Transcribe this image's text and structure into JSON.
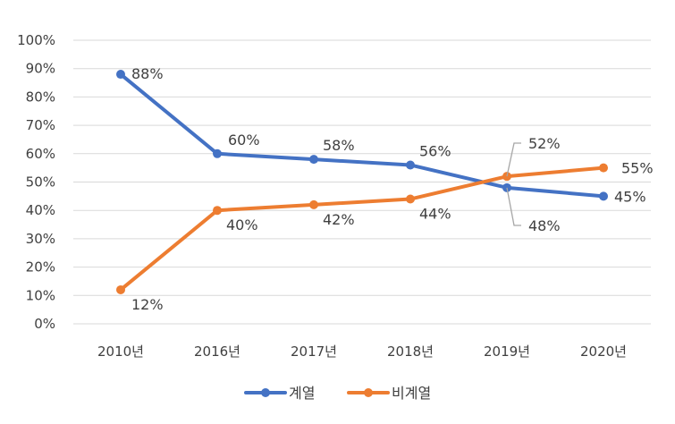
{
  "chart_data": {
    "type": "line",
    "categories": [
      "2010년",
      "2016년",
      "2017년",
      "2018년",
      "2019년",
      "2020년"
    ],
    "ylim": [
      0,
      100
    ],
    "yticks": [
      "0%",
      "10%",
      "20%",
      "30%",
      "40%",
      "50%",
      "60%",
      "70%",
      "80%",
      "90%",
      "100%"
    ],
    "grid": true,
    "legend_position": "bottom",
    "series": [
      {
        "name": "계열",
        "color": "#4472C4",
        "values": [
          88,
          60,
          58,
          56,
          48,
          45
        ],
        "labels": [
          "88%",
          "60%",
          "58%",
          "56%",
          "48%",
          "45%"
        ]
      },
      {
        "name": "비계열",
        "color": "#ED7D31",
        "values": [
          12,
          40,
          42,
          44,
          52,
          55
        ],
        "labels": [
          "12%",
          "40%",
          "42%",
          "44%",
          "52%",
          "55%"
        ]
      }
    ]
  }
}
